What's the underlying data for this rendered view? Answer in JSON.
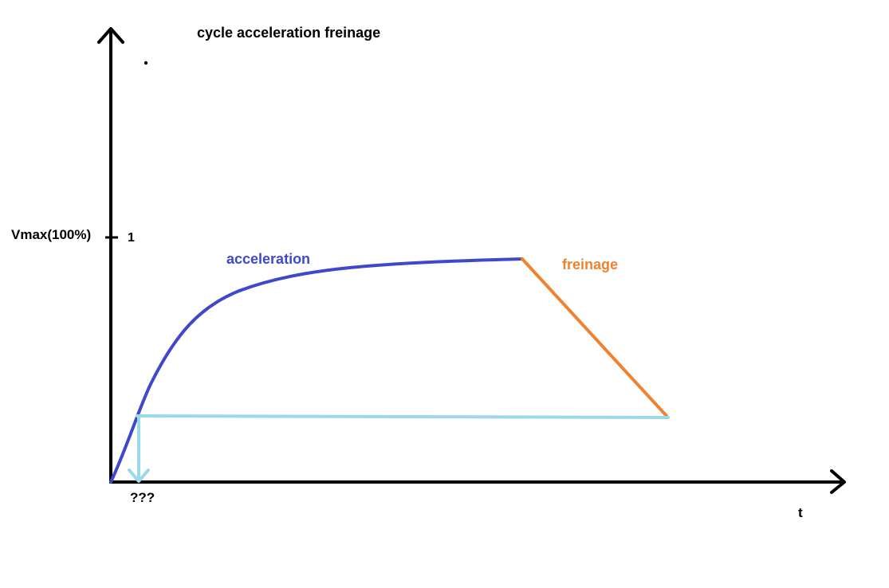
{
  "title": "cycle acceleration freinage",
  "y_axis": {
    "label": "Vmax(100%)",
    "tick_label": "1"
  },
  "x_axis": {
    "label": "t"
  },
  "annotations": {
    "acceleration": "acceleration",
    "freinage": "freinage",
    "unknown": "???"
  },
  "colors": {
    "axes": "#000000",
    "acceleration": "#3f48cc",
    "freinage": "#f0812f",
    "threshold": "#99d9ea"
  }
}
